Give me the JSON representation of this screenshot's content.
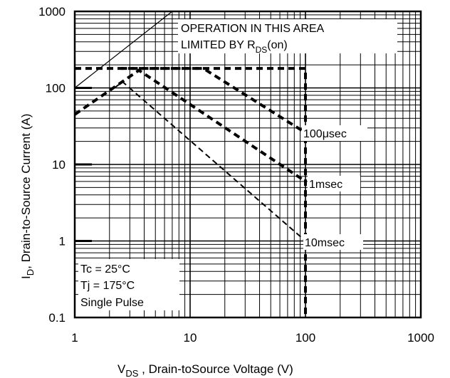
{
  "chart_data": {
    "type": "line",
    "title": "",
    "xscale": "log",
    "yscale": "log",
    "xlim": [
      1,
      1000
    ],
    "ylim": [
      0.1,
      1000
    ],
    "x_ticks": [
      "1",
      "10",
      "100",
      "1000"
    ],
    "y_ticks": [
      "1000",
      "100",
      "10",
      "1",
      "0.1"
    ],
    "xlabel": {
      "main": "V",
      "sub": "DS",
      "rest": " , Drain-toSource Voltage (V)"
    },
    "ylabel": {
      "main": "I",
      "sub": "D",
      "rest": ", Drain-to-Source Current (A)"
    },
    "grid": true,
    "rds_label": {
      "line1": "OPERATION IN THIS AREA",
      "line2_main": "LIMITED BY R",
      "line2_sub": "DS",
      "line2_rest": "(on)"
    },
    "series": [
      {
        "name": "100μsec",
        "style": "dashed-thick",
        "x": [
          2.5,
          4.2,
          13,
          100
        ],
        "y": [
          180,
          180,
          180,
          26
        ]
      },
      {
        "name": "1msec",
        "style": "dashed-thick",
        "x": [
          1,
          3.6,
          100
        ],
        "y": [
          45,
          170,
          6
        ]
      },
      {
        "name": "10msec",
        "style": "dashed-thin",
        "x": [
          2.2,
          2.6,
          100
        ],
        "y": [
          100,
          120,
          1
        ]
      },
      {
        "name": "",
        "style": "dashed-thick",
        "x": [
          1,
          100,
          100
        ],
        "y": [
          180,
          180,
          0.1
        ]
      },
      {
        "name": "",
        "style": "solid-thin",
        "x": [
          1,
          7
        ],
        "y": [
          100,
          1000
        ]
      }
    ],
    "conditions": [
      "Tc = 25°C",
      "Tj = 175°C",
      "Single Pulse"
    ]
  }
}
